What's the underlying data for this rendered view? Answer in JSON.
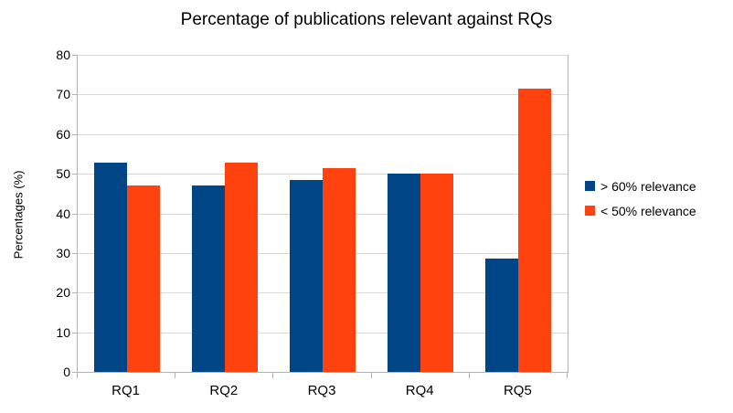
{
  "chart_data": {
    "type": "bar",
    "title": "Percentage of publications relevant against RQs",
    "xlabel": "",
    "ylabel": "Percentages (%)",
    "categories": [
      "RQ1",
      "RQ2",
      "RQ3",
      "RQ4",
      "RQ5"
    ],
    "series": [
      {
        "name": "> 60% relevance",
        "color": "#004586",
        "values": [
          52.9,
          47.1,
          48.5,
          50,
          28.6
        ]
      },
      {
        "name": "< 50% relevance",
        "color": "#FF420E",
        "values": [
          47.1,
          52.9,
          51.5,
          50,
          71.4
        ]
      }
    ],
    "ylim": [
      0,
      80
    ],
    "yticks": [
      0,
      10,
      20,
      30,
      40,
      50,
      60,
      70,
      80
    ],
    "grid": true,
    "legend_position": "right"
  },
  "colors": {
    "background": "#ffffff",
    "grid": "#d9d9d9",
    "axis": "#b3b3b3",
    "text": "#000000",
    "series_blue": "#004586",
    "series_orange": "#FF420E"
  }
}
